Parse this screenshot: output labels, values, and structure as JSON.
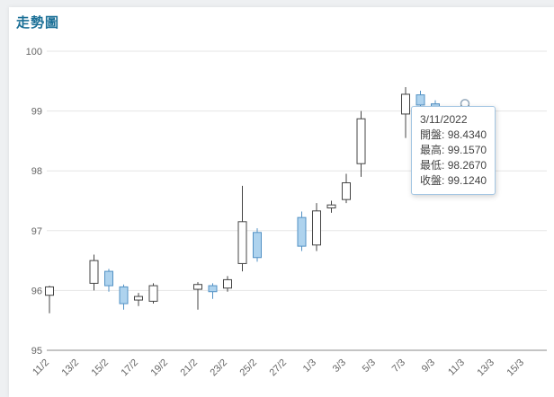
{
  "header": {
    "title": "走勢圖"
  },
  "chart_data": {
    "type": "candlestick",
    "title": "走勢圖",
    "ylim": [
      95,
      100
    ],
    "yticks": [
      95,
      96,
      97,
      98,
      99,
      100
    ],
    "xtick_labels": [
      "11/2",
      "13/2",
      "15/2",
      "17/2",
      "19/2",
      "21/2",
      "23/2",
      "25/2",
      "27/2",
      "1/3",
      "3/3",
      "5/3",
      "7/3",
      "9/3",
      "11/3",
      "13/3",
      "15/3"
    ],
    "grid": true,
    "legend": "none",
    "candles": [
      {
        "date": "11/2",
        "open": 95.92,
        "high": 96.08,
        "low": 95.62,
        "close": 96.06
      },
      {
        "date": "14/2",
        "open": 96.12,
        "high": 96.6,
        "low": 96.0,
        "close": 96.5
      },
      {
        "date": "15/2",
        "open": 96.32,
        "high": 96.36,
        "low": 95.98,
        "close": 96.08
      },
      {
        "date": "16/2",
        "open": 96.06,
        "high": 96.1,
        "low": 95.68,
        "close": 95.78
      },
      {
        "date": "17/2",
        "open": 95.84,
        "high": 95.96,
        "low": 95.74,
        "close": 95.9
      },
      {
        "date": "18/2",
        "open": 95.82,
        "high": 96.12,
        "low": 95.78,
        "close": 96.08
      },
      {
        "date": "21/2",
        "open": 96.02,
        "high": 96.14,
        "low": 95.68,
        "close": 96.1
      },
      {
        "date": "22/2",
        "open": 96.08,
        "high": 96.12,
        "low": 95.86,
        "close": 95.98
      },
      {
        "date": "23/2",
        "open": 96.04,
        "high": 96.24,
        "low": 95.98,
        "close": 96.18
      },
      {
        "date": "24/2",
        "open": 96.45,
        "high": 97.75,
        "low": 96.32,
        "close": 97.15
      },
      {
        "date": "25/2",
        "open": 96.97,
        "high": 97.04,
        "low": 96.48,
        "close": 96.55
      },
      {
        "date": "28/2",
        "open": 97.22,
        "high": 97.32,
        "low": 96.66,
        "close": 96.74
      },
      {
        "date": "1/3",
        "open": 96.76,
        "high": 97.46,
        "low": 96.66,
        "close": 97.33
      },
      {
        "date": "2/3",
        "open": 97.38,
        "high": 97.5,
        "low": 97.3,
        "close": 97.43
      },
      {
        "date": "3/3",
        "open": 97.52,
        "high": 97.95,
        "low": 97.46,
        "close": 97.8
      },
      {
        "date": "4/3",
        "open": 98.12,
        "high": 99.0,
        "low": 97.9,
        "close": 98.87
      },
      {
        "date": "7/3",
        "open": 98.95,
        "high": 99.4,
        "low": 98.55,
        "close": 99.28
      },
      {
        "date": "8/3",
        "open": 99.27,
        "high": 99.34,
        "low": 99.02,
        "close": 99.1
      },
      {
        "date": "9/3",
        "open": 99.12,
        "high": 99.18,
        "low": 98.94,
        "close": 99.02
      },
      {
        "date": "11/3",
        "open": 98.434,
        "high": 99.157,
        "low": 98.267,
        "close": 99.124
      }
    ],
    "highlight": {
      "date": "11/3",
      "price": 99.124
    },
    "colors": {
      "up_fill": "#ffffff",
      "up_border": "#444444",
      "down_fill": "#aed3ee",
      "down_border": "#5291c4",
      "grid": "#e6e6e6",
      "axis": "#888888",
      "label": "#666666",
      "title": "#1a6f96",
      "marker_border": "#93a8bb",
      "tooltip_border": "#a3c6e3"
    }
  },
  "tooltip": {
    "date": "3/11/2022",
    "separator": ": ",
    "rows": [
      {
        "label": "開盤",
        "value": "98.4340"
      },
      {
        "label": "最高",
        "value": "99.1570"
      },
      {
        "label": "最低",
        "value": "98.2670"
      },
      {
        "label": "收盤",
        "value": "99.1240"
      }
    ]
  }
}
